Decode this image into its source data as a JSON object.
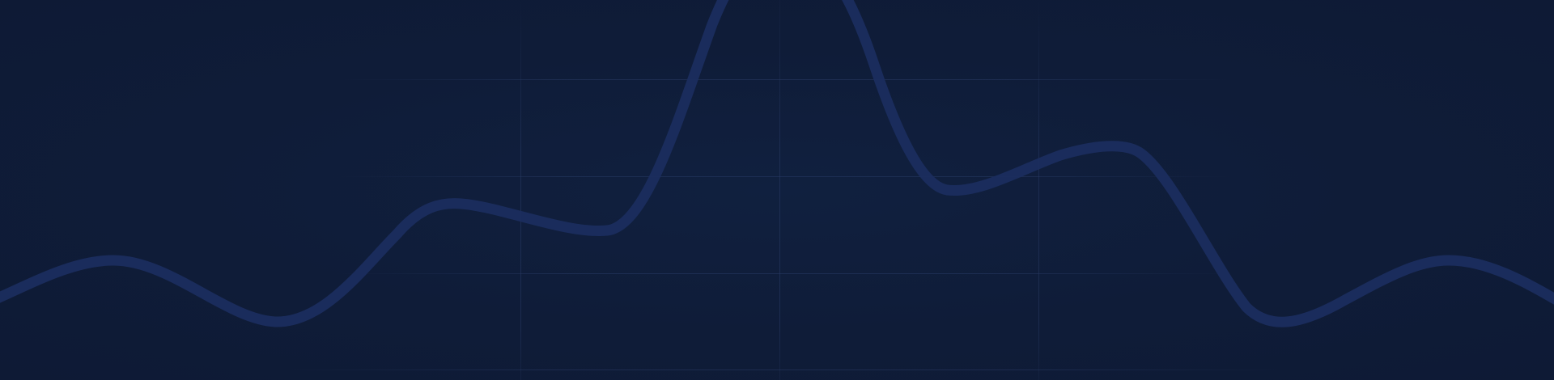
{
  "background": {
    "color": "#0f1c38",
    "grid_color": "#1a2a4c",
    "wave_color": "#1b2d5e"
  },
  "decoration": {
    "name": "hero-background-wave",
    "grid": true
  }
}
